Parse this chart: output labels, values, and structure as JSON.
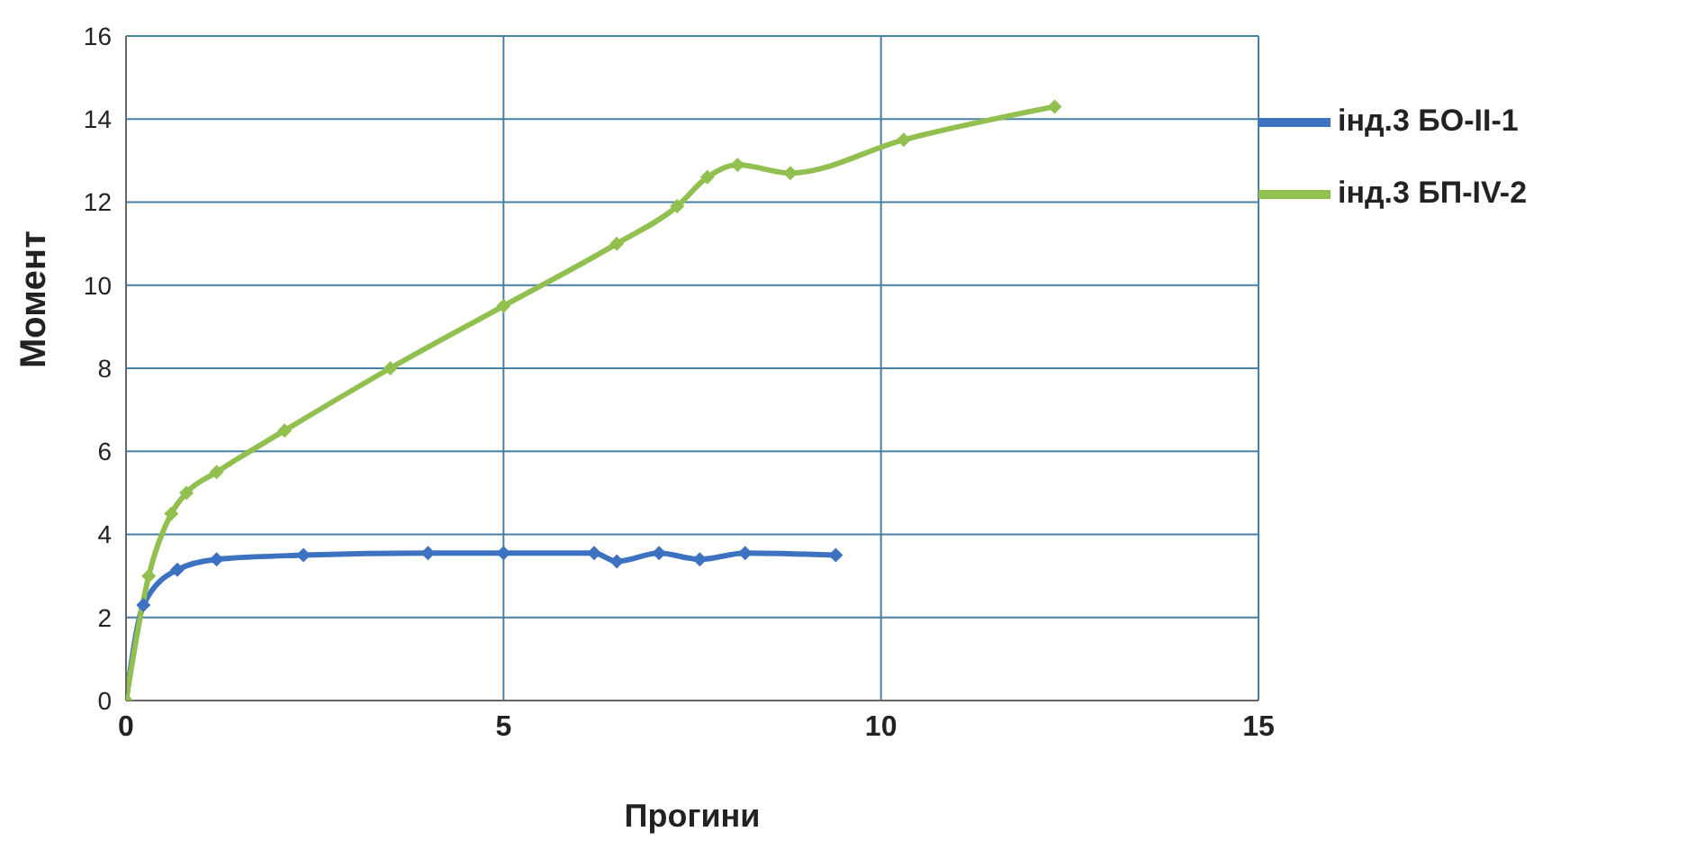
{
  "chart_data": {
    "type": "line",
    "xlabel": "Прогини",
    "ylabel": "Момент",
    "xlim": [
      0,
      15
    ],
    "xticks": [
      0,
      5,
      10,
      15
    ],
    "ylim": [
      0,
      16
    ],
    "yticks": [
      0,
      2,
      4,
      6,
      8,
      10,
      12,
      14,
      16
    ],
    "grid": true,
    "legend": "right",
    "marker": "diamond",
    "line_style": "solid",
    "series": [
      {
        "name": "інд.3 БО-ІІ-1",
        "color": "#3d72c0",
        "x": [
          0,
          0.23,
          0.68,
          1.2,
          2.35,
          4,
          5,
          6.2,
          6.5,
          7.06,
          7.6,
          8.2,
          9.4
        ],
        "values": [
          0,
          2.3,
          3.15,
          3.4,
          3.5,
          3.55,
          3.55,
          3.55,
          3.35,
          3.55,
          3.4,
          3.55,
          3.5
        ]
      },
      {
        "name": "інд.3 БП-IV-2",
        "color": "#92c050",
        "x": [
          0,
          0.3,
          0.6,
          0.8,
          1.2,
          2.1,
          3.5,
          5,
          6.5,
          7.3,
          7.7,
          8.1,
          8.8,
          10.3,
          12.3
        ],
        "values": [
          0,
          3,
          4.5,
          5,
          5.5,
          6.5,
          8,
          9.5,
          11,
          11.9,
          12.6,
          12.9,
          12.7,
          13.5,
          14.3
        ]
      }
    ]
  }
}
